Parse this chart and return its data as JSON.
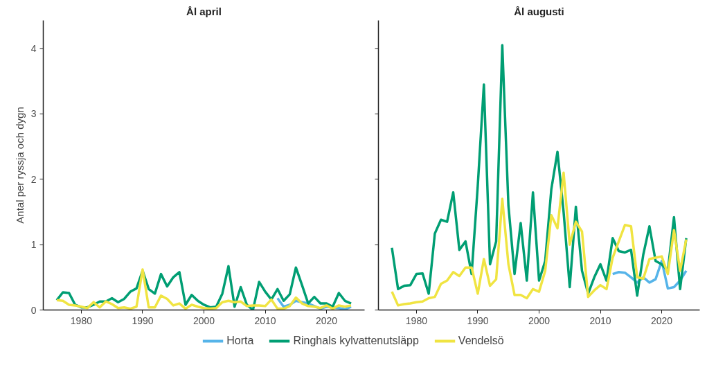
{
  "chart_data": [
    {
      "type": "line",
      "title": "Ål april",
      "ylabel": "Antal per ryssja och dygn",
      "x": [
        1976,
        1977,
        1978,
        1979,
        1980,
        1981,
        1982,
        1983,
        1984,
        1985,
        1986,
        1987,
        1988,
        1989,
        1990,
        1991,
        1992,
        1993,
        1994,
        1995,
        1996,
        1997,
        1998,
        1999,
        2000,
        2001,
        2002,
        2003,
        2004,
        2005,
        2006,
        2007,
        2008,
        2009,
        2010,
        2011,
        2012,
        2013,
        2014,
        2015,
        2016,
        2017,
        2018,
        2019,
        2020,
        2021,
        2022,
        2023,
        2024
      ],
      "xlim": [
        1973.8,
        2026.2
      ],
      "xticks": [
        1980,
        1990,
        2000,
        2010,
        2020
      ],
      "ylim": [
        0,
        4.43
      ],
      "yticks": [
        0,
        1,
        2,
        3,
        4
      ],
      "grid": false,
      "legend": "bottom",
      "line_style": "solid",
      "series": [
        {
          "name": "Horta",
          "color": "#56b4e9",
          "x": [
            2012,
            2013,
            2014,
            2015,
            2016,
            2017,
            2018,
            2019,
            2020,
            2021,
            2022,
            2023,
            2024
          ],
          "values": [
            0.18,
            0.05,
            0.08,
            0.14,
            0.12,
            0.1,
            0.06,
            0.02,
            0.05,
            0.04,
            0.03,
            0.01,
            0.05
          ]
        },
        {
          "name": "Ringhals kylvattenutsläpp",
          "color": "#009e73",
          "values": [
            0.15,
            0.27,
            0.26,
            0.08,
            0.04,
            0.04,
            0.08,
            0.13,
            0.13,
            0.18,
            0.12,
            0.17,
            0.28,
            0.33,
            0.6,
            0.32,
            0.25,
            0.55,
            0.36,
            0.5,
            0.58,
            0.08,
            0.23,
            0.14,
            0.08,
            0.04,
            0.05,
            0.25,
            0.67,
            0.05,
            0.35,
            0.08,
            0.0,
            0.43,
            0.28,
            0.16,
            0.32,
            0.14,
            0.24,
            0.65,
            0.38,
            0.1,
            0.2,
            0.1,
            0.1,
            0.05,
            0.26,
            0.14,
            0.1
          ]
        },
        {
          "name": "Vendelsö",
          "color": "#f0e442",
          "values": [
            0.15,
            0.14,
            0.08,
            0.07,
            0.05,
            0.03,
            0.12,
            0.04,
            0.13,
            0.09,
            0.03,
            0.04,
            0.02,
            0.05,
            0.62,
            0.04,
            0.04,
            0.22,
            0.17,
            0.07,
            0.1,
            0.02,
            0.08,
            0.05,
            0.03,
            0.02,
            0.03,
            0.12,
            0.14,
            0.12,
            0.13,
            0.06,
            0.07,
            0.07,
            0.06,
            0.16,
            0.02,
            0.02,
            0.06,
            0.19,
            0.1,
            0.06,
            0.05,
            0.03,
            0.07,
            0.02,
            0.07,
            0.05,
            0.07
          ]
        }
      ]
    },
    {
      "type": "line",
      "title": "Ål augusti",
      "x": [
        1976,
        1977,
        1978,
        1979,
        1980,
        1981,
        1982,
        1983,
        1984,
        1985,
        1986,
        1987,
        1988,
        1989,
        1990,
        1991,
        1992,
        1993,
        1994,
        1995,
        1996,
        1997,
        1998,
        1999,
        2000,
        2001,
        2002,
        2003,
        2004,
        2005,
        2006,
        2007,
        2008,
        2009,
        2010,
        2011,
        2012,
        2013,
        2014,
        2015,
        2016,
        2017,
        2018,
        2019,
        2020,
        2021,
        2022,
        2023,
        2024
      ],
      "xlim": [
        1973.8,
        2026.2
      ],
      "xticks": [
        1980,
        1990,
        2000,
        2010,
        2020
      ],
      "ylim": [
        0,
        4.43
      ],
      "yticks": [
        0,
        1,
        2,
        3,
        4
      ],
      "tick_labels": "x",
      "grid": false,
      "legend": "bottom",
      "line_style": "solid",
      "series": [
        {
          "name": "Horta",
          "color": "#56b4e9",
          "x": [
            2012,
            2013,
            2014,
            2015,
            2016,
            2017,
            2018,
            2019,
            2020,
            2021,
            2022,
            2023,
            2024
          ],
          "values": [
            0.55,
            0.58,
            0.57,
            0.5,
            0.42,
            0.5,
            0.42,
            0.47,
            0.75,
            0.33,
            0.35,
            0.45,
            0.6
          ]
        },
        {
          "name": "Ringhals kylvattenutsläpp",
          "color": "#009e73",
          "values": [
            0.95,
            0.32,
            0.37,
            0.38,
            0.55,
            0.56,
            0.25,
            1.17,
            1.38,
            1.35,
            1.8,
            0.92,
            1.05,
            0.55,
            1.9,
            3.45,
            0.7,
            1.05,
            4.05,
            1.6,
            0.55,
            1.33,
            0.45,
            1.8,
            0.45,
            0.75,
            1.85,
            2.42,
            1.5,
            0.35,
            1.58,
            0.6,
            0.25,
            0.5,
            0.7,
            0.45,
            1.1,
            0.9,
            0.88,
            0.92,
            0.22,
            0.85,
            1.28,
            0.75,
            0.7,
            0.6,
            1.42,
            0.32,
            1.1
          ]
        },
        {
          "name": "Vendelsö",
          "color": "#f0e442",
          "values": [
            0.28,
            0.07,
            0.09,
            0.1,
            0.12,
            0.13,
            0.18,
            0.2,
            0.4,
            0.45,
            0.58,
            0.52,
            0.65,
            0.65,
            0.25,
            0.78,
            0.37,
            0.47,
            1.7,
            0.7,
            0.23,
            0.23,
            0.18,
            0.32,
            0.28,
            0.6,
            1.45,
            1.25,
            2.1,
            1.0,
            1.35,
            1.2,
            0.2,
            0.3,
            0.38,
            0.32,
            0.8,
            1.05,
            1.3,
            1.28,
            0.5,
            0.48,
            0.78,
            0.8,
            0.82,
            0.55,
            1.22,
            0.6,
            1.08
          ]
        }
      ]
    }
  ]
}
